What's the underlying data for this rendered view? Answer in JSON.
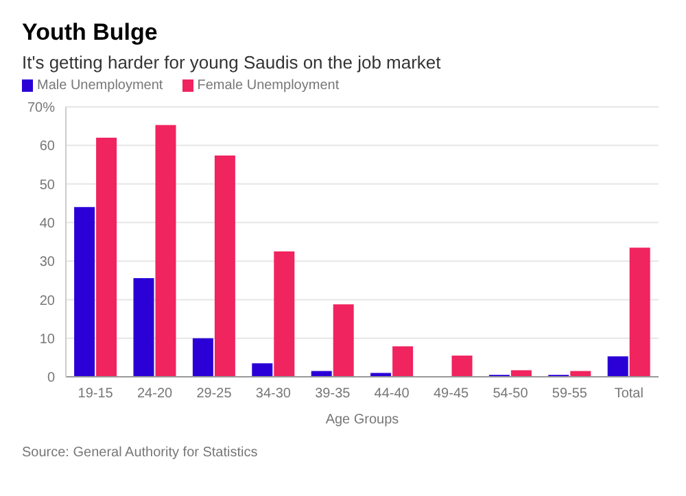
{
  "chart_data": {
    "type": "bar",
    "title": "Youth Bulge",
    "subtitle": "It's getting harder for young Saudis on the job market",
    "xlabel": "Age Groups",
    "categories": [
      "19-15",
      "24-20",
      "29-25",
      "34-30",
      "39-35",
      "44-40",
      "49-45",
      "54-50",
      "59-55",
      "Total"
    ],
    "series": [
      {
        "name": "Male Unemployment",
        "color": "#2a00d6",
        "values": [
          44,
          25.6,
          10,
          3.5,
          1.5,
          1,
          null,
          0.5,
          0.5,
          5.3
        ]
      },
      {
        "name": "Female Unemployment",
        "color": "#f0245e",
        "values": [
          62,
          65.3,
          57.4,
          32.5,
          18.8,
          7.9,
          5.5,
          1.7,
          1.5,
          33.5
        ]
      }
    ],
    "ylim": [
      0,
      70
    ],
    "yticks": [
      0,
      10,
      20,
      30,
      40,
      50,
      60,
      {
        "value": 70,
        "label": "70%"
      }
    ],
    "grid": "y",
    "legend": "top left",
    "annotations": [
      "Source: General Authority for Statistics"
    ]
  }
}
